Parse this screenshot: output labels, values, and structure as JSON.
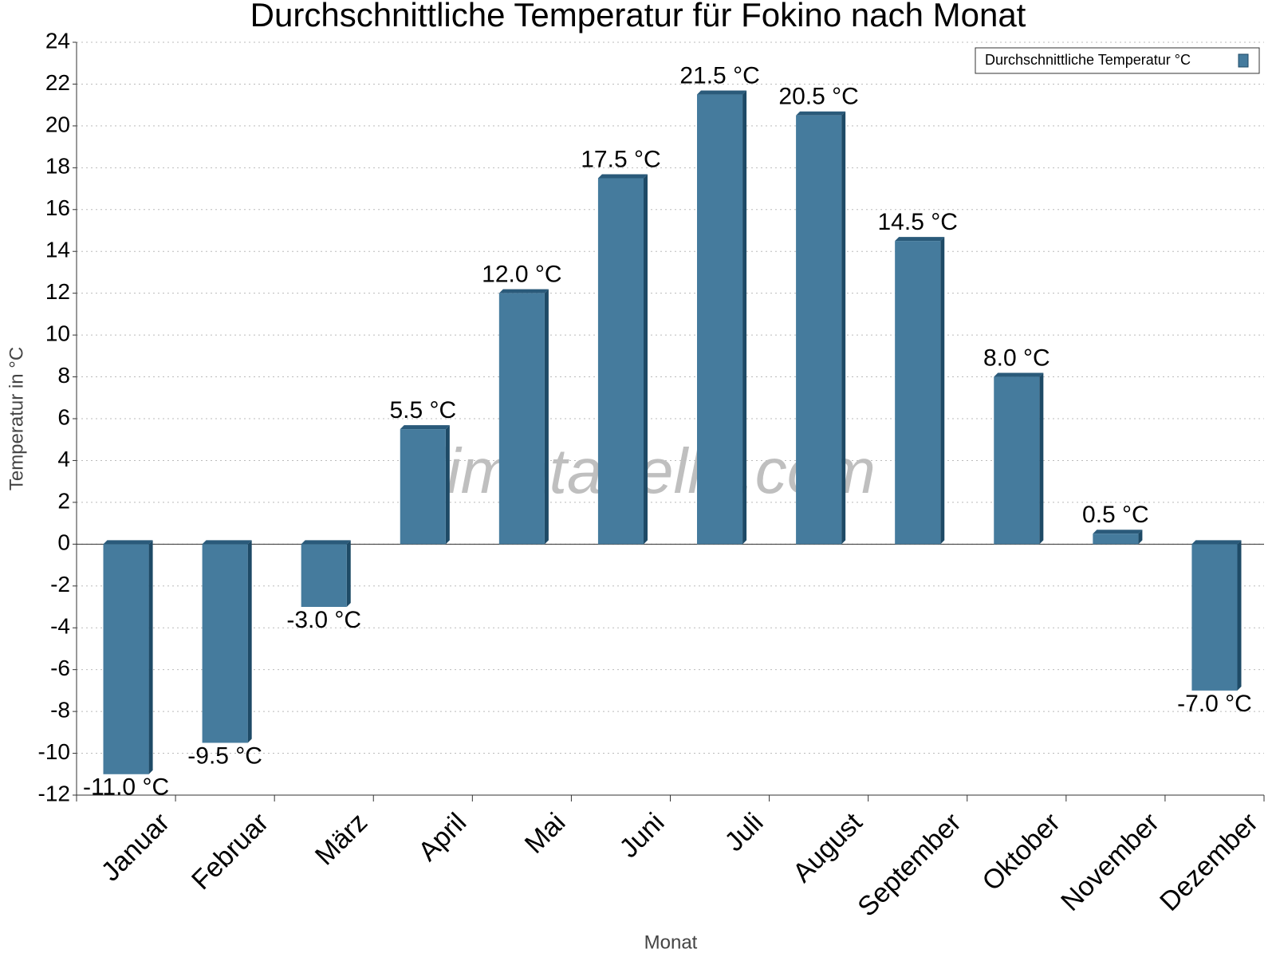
{
  "chart_data": {
    "type": "bar",
    "title": "Durchschnittliche Temperatur für Fokino nach Monat",
    "y_label": "Temperatur in °C",
    "x_label": "Monat",
    "watermark": "klimatabelle.com",
    "categories": [
      "Januar",
      "Februar",
      "März",
      "April",
      "Mai",
      "Juni",
      "Juli",
      "August",
      "September",
      "Oktober",
      "November",
      "Dezember"
    ],
    "series": [
      {
        "name": "Durchschnittliche Temperatur °C",
        "color": "#457b9d",
        "values": [
          -11,
          -9.5,
          -3,
          5.5,
          12,
          17.5,
          21.5,
          20.5,
          14.5,
          8,
          0.5,
          -7
        ],
        "value_labels": [
          "-11.0 °C",
          "-9.5 °C",
          "-3.0 °C",
          "5.5 °C",
          "12.0 °C",
          "17.5 °C",
          "21.5 °C",
          "20.5 °C",
          "14.5 °C",
          "8.0 °C",
          "0.5 °C",
          "-7.0 °C"
        ]
      }
    ],
    "ylim": [
      -12,
      24
    ],
    "yticks": [
      -12,
      -10,
      -8,
      -6,
      -4,
      -2,
      0,
      2,
      4,
      6,
      8,
      10,
      12,
      14,
      16,
      18,
      20,
      22,
      24
    ],
    "grid": true,
    "legend": "top-right"
  }
}
